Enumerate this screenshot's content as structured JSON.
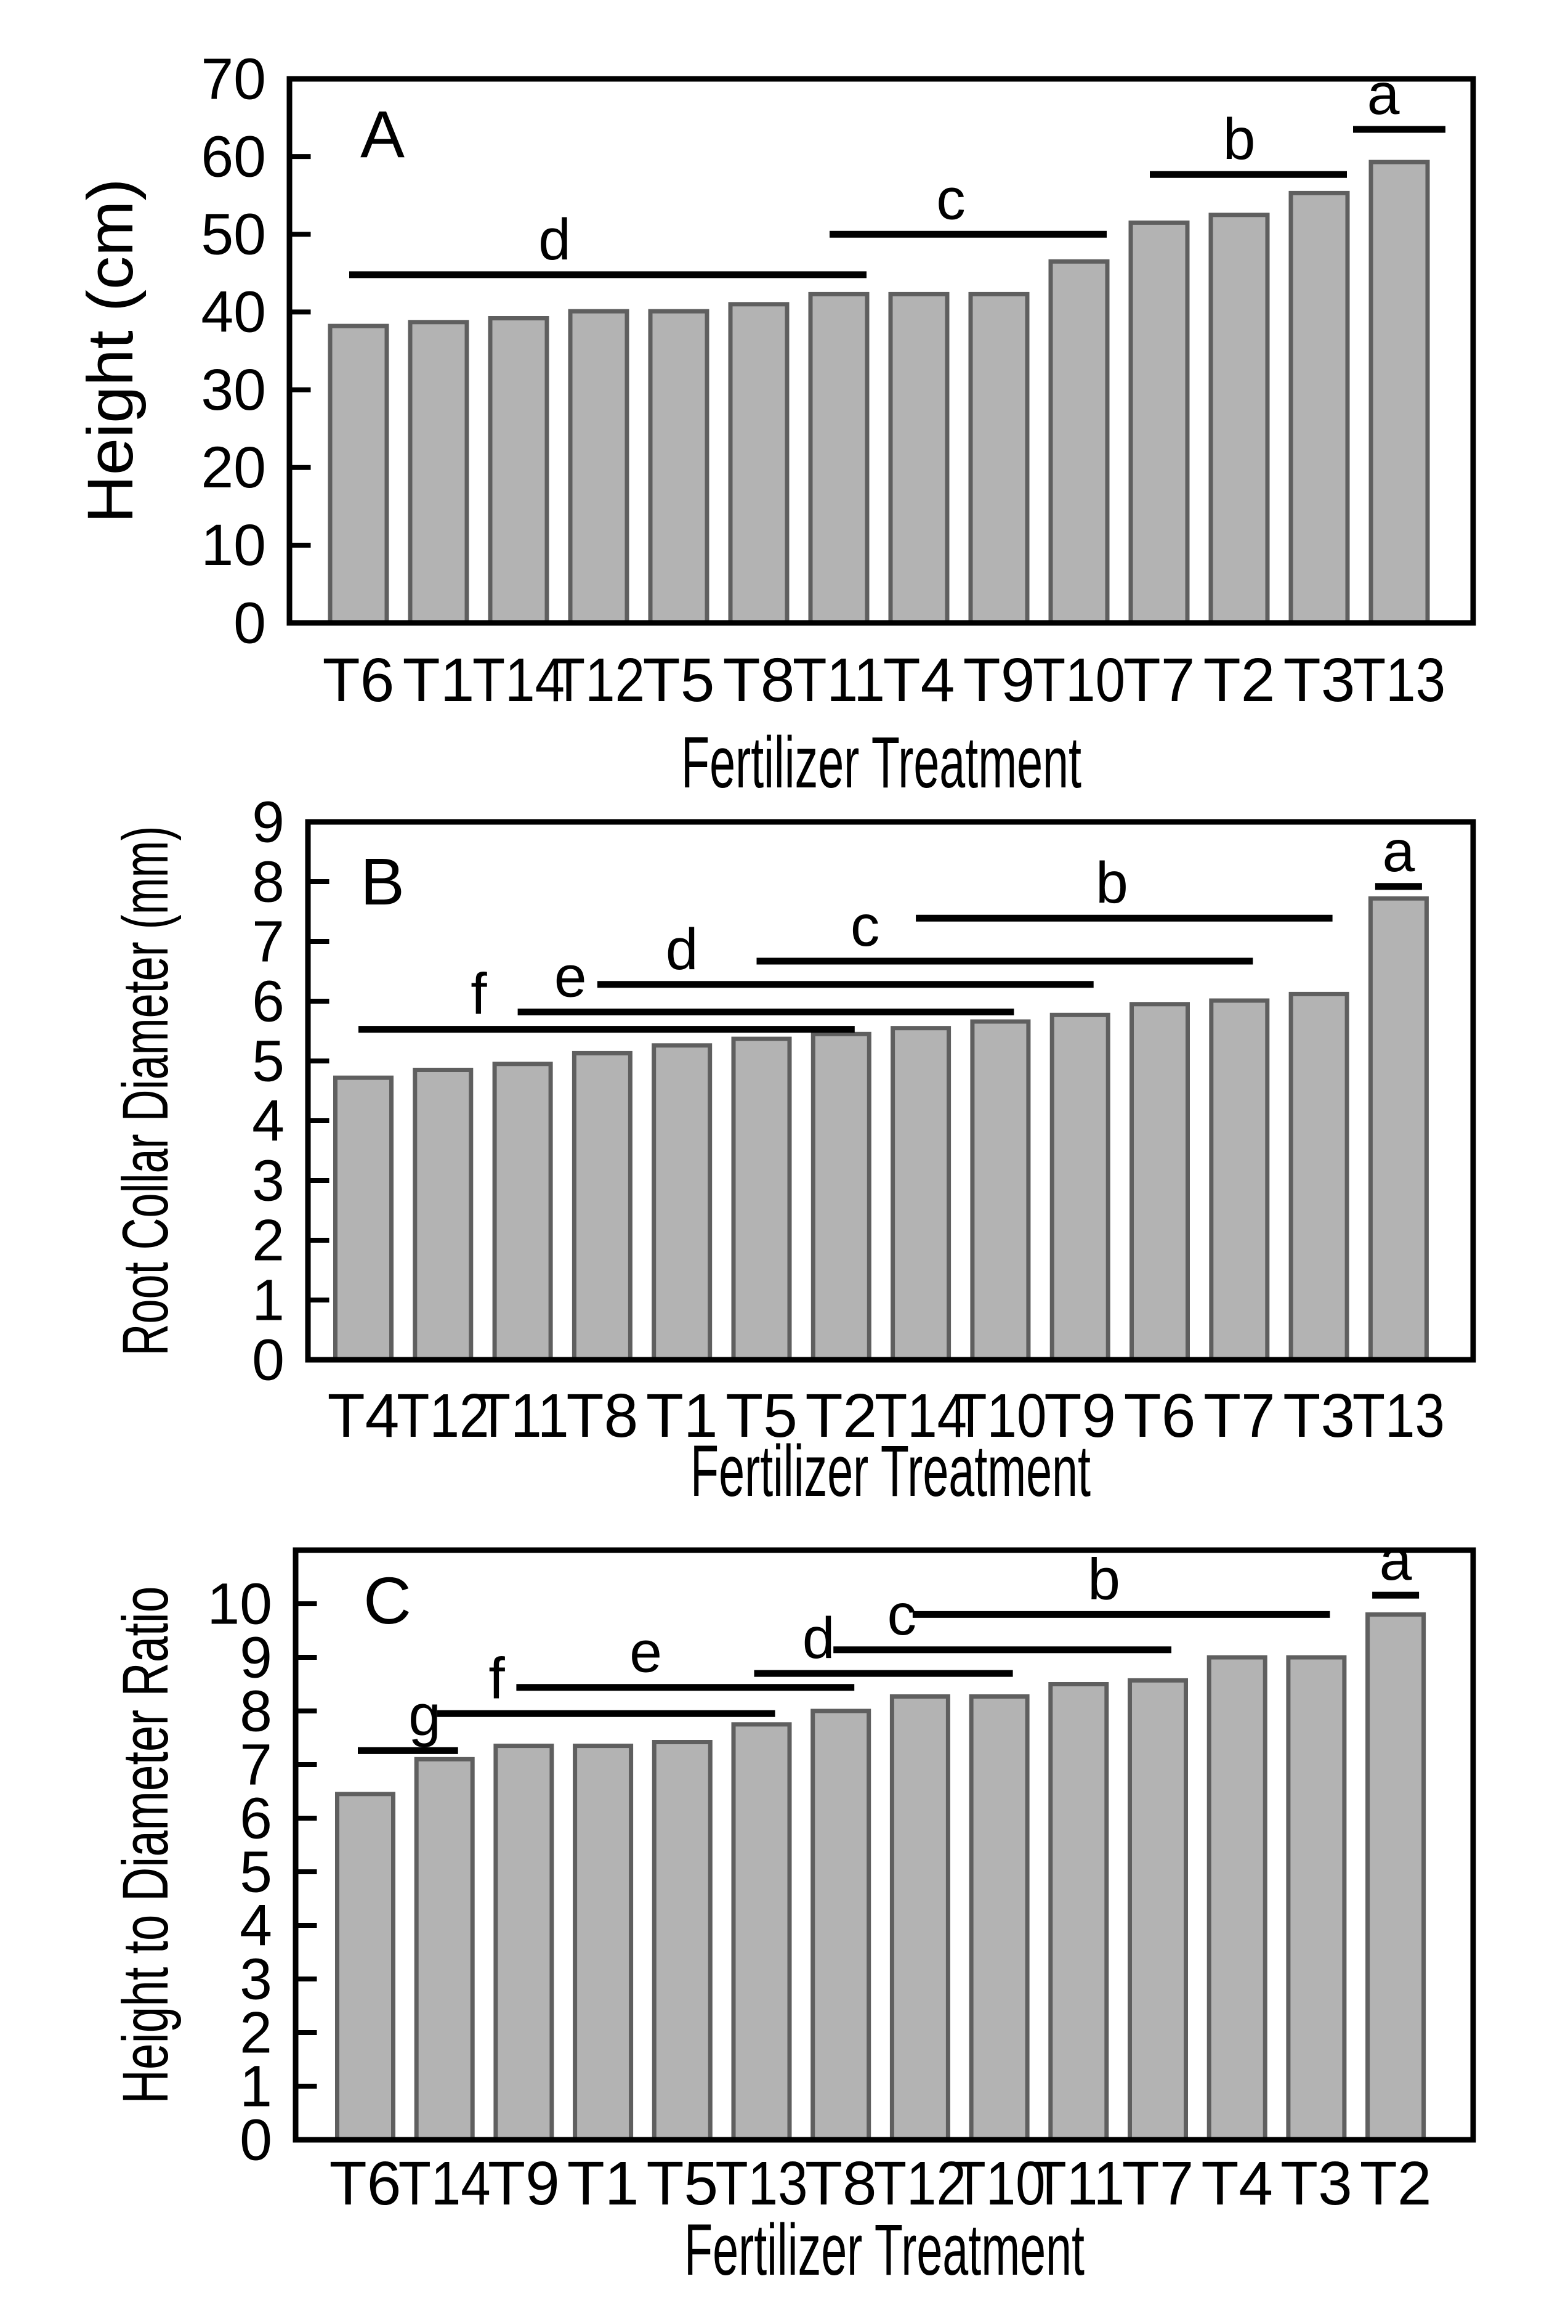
{
  "figure": {
    "background": "#ffffff",
    "bar_fill": "#b3b3b3",
    "bar_stroke": "#5f5f5f",
    "axis_color": "#000000",
    "x_axis_title": "Fertilizer Treatment"
  },
  "chart_data": [
    {
      "type": "bar",
      "panel_label": "A",
      "ylabel": "Height  (cm)",
      "xlabel": "Fertilizer  Treatment",
      "categories": [
        "T6",
        "T1",
        "T14",
        "T12",
        "T5",
        "T8",
        "T11",
        "T4",
        "T9",
        "T10",
        "T7",
        "T2",
        "T3",
        "T13"
      ],
      "values": [
        38.2,
        38.7,
        39.2,
        40.1,
        40.1,
        41.0,
        42.3,
        42.3,
        42.3,
        46.5,
        51.5,
        52.5,
        55.3,
        59.3
      ],
      "ylim": [
        0,
        70
      ],
      "yticks": [
        0,
        10,
        20,
        30,
        40,
        50,
        60,
        70
      ],
      "frame_top_value": 70,
      "grid": false,
      "sig_lines": [
        {
          "letter": "d",
          "from": "T6",
          "to": "T11",
          "y": 44.8,
          "letter_at": 2.45
        },
        {
          "letter": "c",
          "from": "T11",
          "to": "T10",
          "y": 50.0,
          "letter_at": 7.4
        },
        {
          "letter": "b",
          "from": "T7",
          "to": "T3",
          "y": 57.7,
          "letter_at": 11.0
        },
        {
          "letter": "a",
          "from": "T13",
          "to": "T13",
          "y": 63.5,
          "letter_at": 12.8
        }
      ]
    },
    {
      "type": "bar",
      "panel_label": "B",
      "ylabel": "Root Collar Diameter (mm)",
      "xlabel": "Fertilizer Treatment",
      "categories": [
        "T4",
        "T12",
        "T11",
        "T8",
        "T1",
        "T5",
        "T2",
        "T14",
        "T10",
        "T9",
        "T6",
        "T7",
        "T3",
        "T13"
      ],
      "values": [
        4.72,
        4.85,
        4.95,
        5.13,
        5.26,
        5.37,
        5.45,
        5.55,
        5.66,
        5.77,
        5.95,
        6.01,
        6.12,
        7.72
      ],
      "ylim": [
        0,
        9
      ],
      "yticks": [
        0,
        1,
        2,
        3,
        4,
        5,
        6,
        7,
        8,
        9
      ],
      "frame_top_value": 9,
      "grid": false,
      "sig_lines": [
        {
          "letter": "f",
          "from": "T4",
          "to": "T2",
          "y": 5.53,
          "letter_at": 1.45
        },
        {
          "letter": "e",
          "from": "T11",
          "to": "T10",
          "y": 5.82,
          "letter_at": 2.6
        },
        {
          "letter": "d",
          "from": "T8",
          "to": "T9",
          "y": 6.28,
          "letter_at": 4.0
        },
        {
          "letter": "c",
          "from": "T5",
          "to": "T7",
          "y": 6.67,
          "letter_at": 6.3
        },
        {
          "letter": "b",
          "from": "T14",
          "to": "T3",
          "y": 7.39,
          "letter_at": 9.4
        },
        {
          "letter": "a",
          "from": "T13",
          "to": "T13",
          "y": 7.92,
          "letter_at": 13
        }
      ]
    },
    {
      "type": "bar",
      "panel_label": "C",
      "ylabel": "Height to Diameter Ratio",
      "xlabel": "Fertilizer Treatment",
      "categories": [
        "T6",
        "T14",
        "T9",
        "T1",
        "T5",
        "T13",
        "T8",
        "T12",
        "T10",
        "T11",
        "T7",
        "T4",
        "T3",
        "T2"
      ],
      "values": [
        6.45,
        7.1,
        7.35,
        7.35,
        7.42,
        7.75,
        8.0,
        8.27,
        8.27,
        8.5,
        8.57,
        9.0,
        9.0,
        9.8
      ],
      "ylim": [
        0,
        11
      ],
      "yticks": [
        0,
        1,
        2,
        3,
        4,
        5,
        6,
        7,
        8,
        9,
        10
      ],
      "frame_top_value": 11,
      "grid": false,
      "sig_lines": [
        {
          "letter": "g",
          "from": "T6",
          "to": "T14",
          "y": 7.26,
          "letter_at": 0.75
        },
        {
          "letter": "f",
          "from": "T14",
          "to": "T13",
          "y": 7.95,
          "letter_at": 1.66
        },
        {
          "letter": "e",
          "from": "T9",
          "to": "T8",
          "y": 8.44,
          "letter_at": 3.54
        },
        {
          "letter": "d",
          "from": "T13",
          "to": "T10",
          "y": 8.7,
          "letter_at": 5.72
        },
        {
          "letter": "c",
          "from": "T8",
          "to": "T7",
          "y": 9.14,
          "letter_at": 6.77
        },
        {
          "letter": "b",
          "from": "T12",
          "to": "T3",
          "y": 9.8,
          "letter_at": 9.32
        },
        {
          "letter": "a",
          "from": "T2",
          "to": "T2",
          "y": 10.16,
          "letter_at": 13
        }
      ]
    }
  ]
}
